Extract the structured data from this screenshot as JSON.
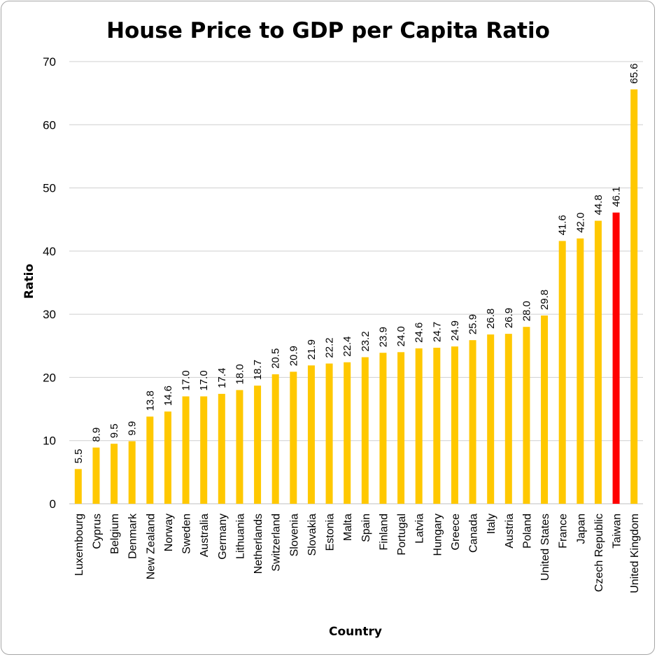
{
  "chart_data": {
    "type": "bar",
    "title": "House Price to GDP per Capita Ratio",
    "xlabel": "Country",
    "ylabel": "Ratio",
    "ylim": [
      0,
      70
    ],
    "yticks": [
      "0",
      "10",
      "20",
      "30",
      "40",
      "50",
      "60",
      "70"
    ],
    "grid": true,
    "default_color": "#FFC800",
    "highlight_color": "#FF0000",
    "highlight": "Taiwan",
    "categories": [
      "Luxembourg",
      "Cyprus",
      "Belgium",
      "Denmark",
      "New Zealand",
      "Norway",
      "Sweden",
      "Australia",
      "Germany",
      "Lithuania",
      "Netherlands",
      "Switzerland",
      "Slovenia",
      "Slovakia",
      "Estonia",
      "Malta",
      "Spain",
      "Finland",
      "Portugal",
      "Latvia",
      "Hungary",
      "Greece",
      "Canada",
      "Italy",
      "Austria",
      "Poland",
      "United States",
      "France",
      "Japan",
      "Czech Republic",
      "Taiwan",
      "United Kingdom"
    ],
    "values": [
      5.5,
      8.9,
      9.5,
      9.9,
      13.8,
      14.6,
      17.0,
      17.0,
      17.4,
      18.0,
      18.7,
      20.5,
      20.9,
      21.9,
      22.2,
      22.4,
      23.2,
      23.9,
      24.0,
      24.6,
      24.7,
      24.9,
      25.9,
      26.8,
      26.9,
      28.0,
      29.8,
      41.6,
      42.0,
      44.8,
      46.1,
      65.6
    ],
    "value_labels": [
      "5.5",
      "8.9",
      "9.5",
      "9.9",
      "13.8",
      "14.6",
      "17.0",
      "17.0",
      "17.4",
      "18.0",
      "18.7",
      "20.5",
      "20.9",
      "21.9",
      "22.2",
      "22.4",
      "23.2",
      "23.9",
      "24.0",
      "24.6",
      "24.7",
      "24.9",
      "25.9",
      "26.8",
      "26.9",
      "28.0",
      "29.8",
      "41.6",
      "42.0",
      "44.8",
      "46.1",
      "65.6"
    ]
  }
}
